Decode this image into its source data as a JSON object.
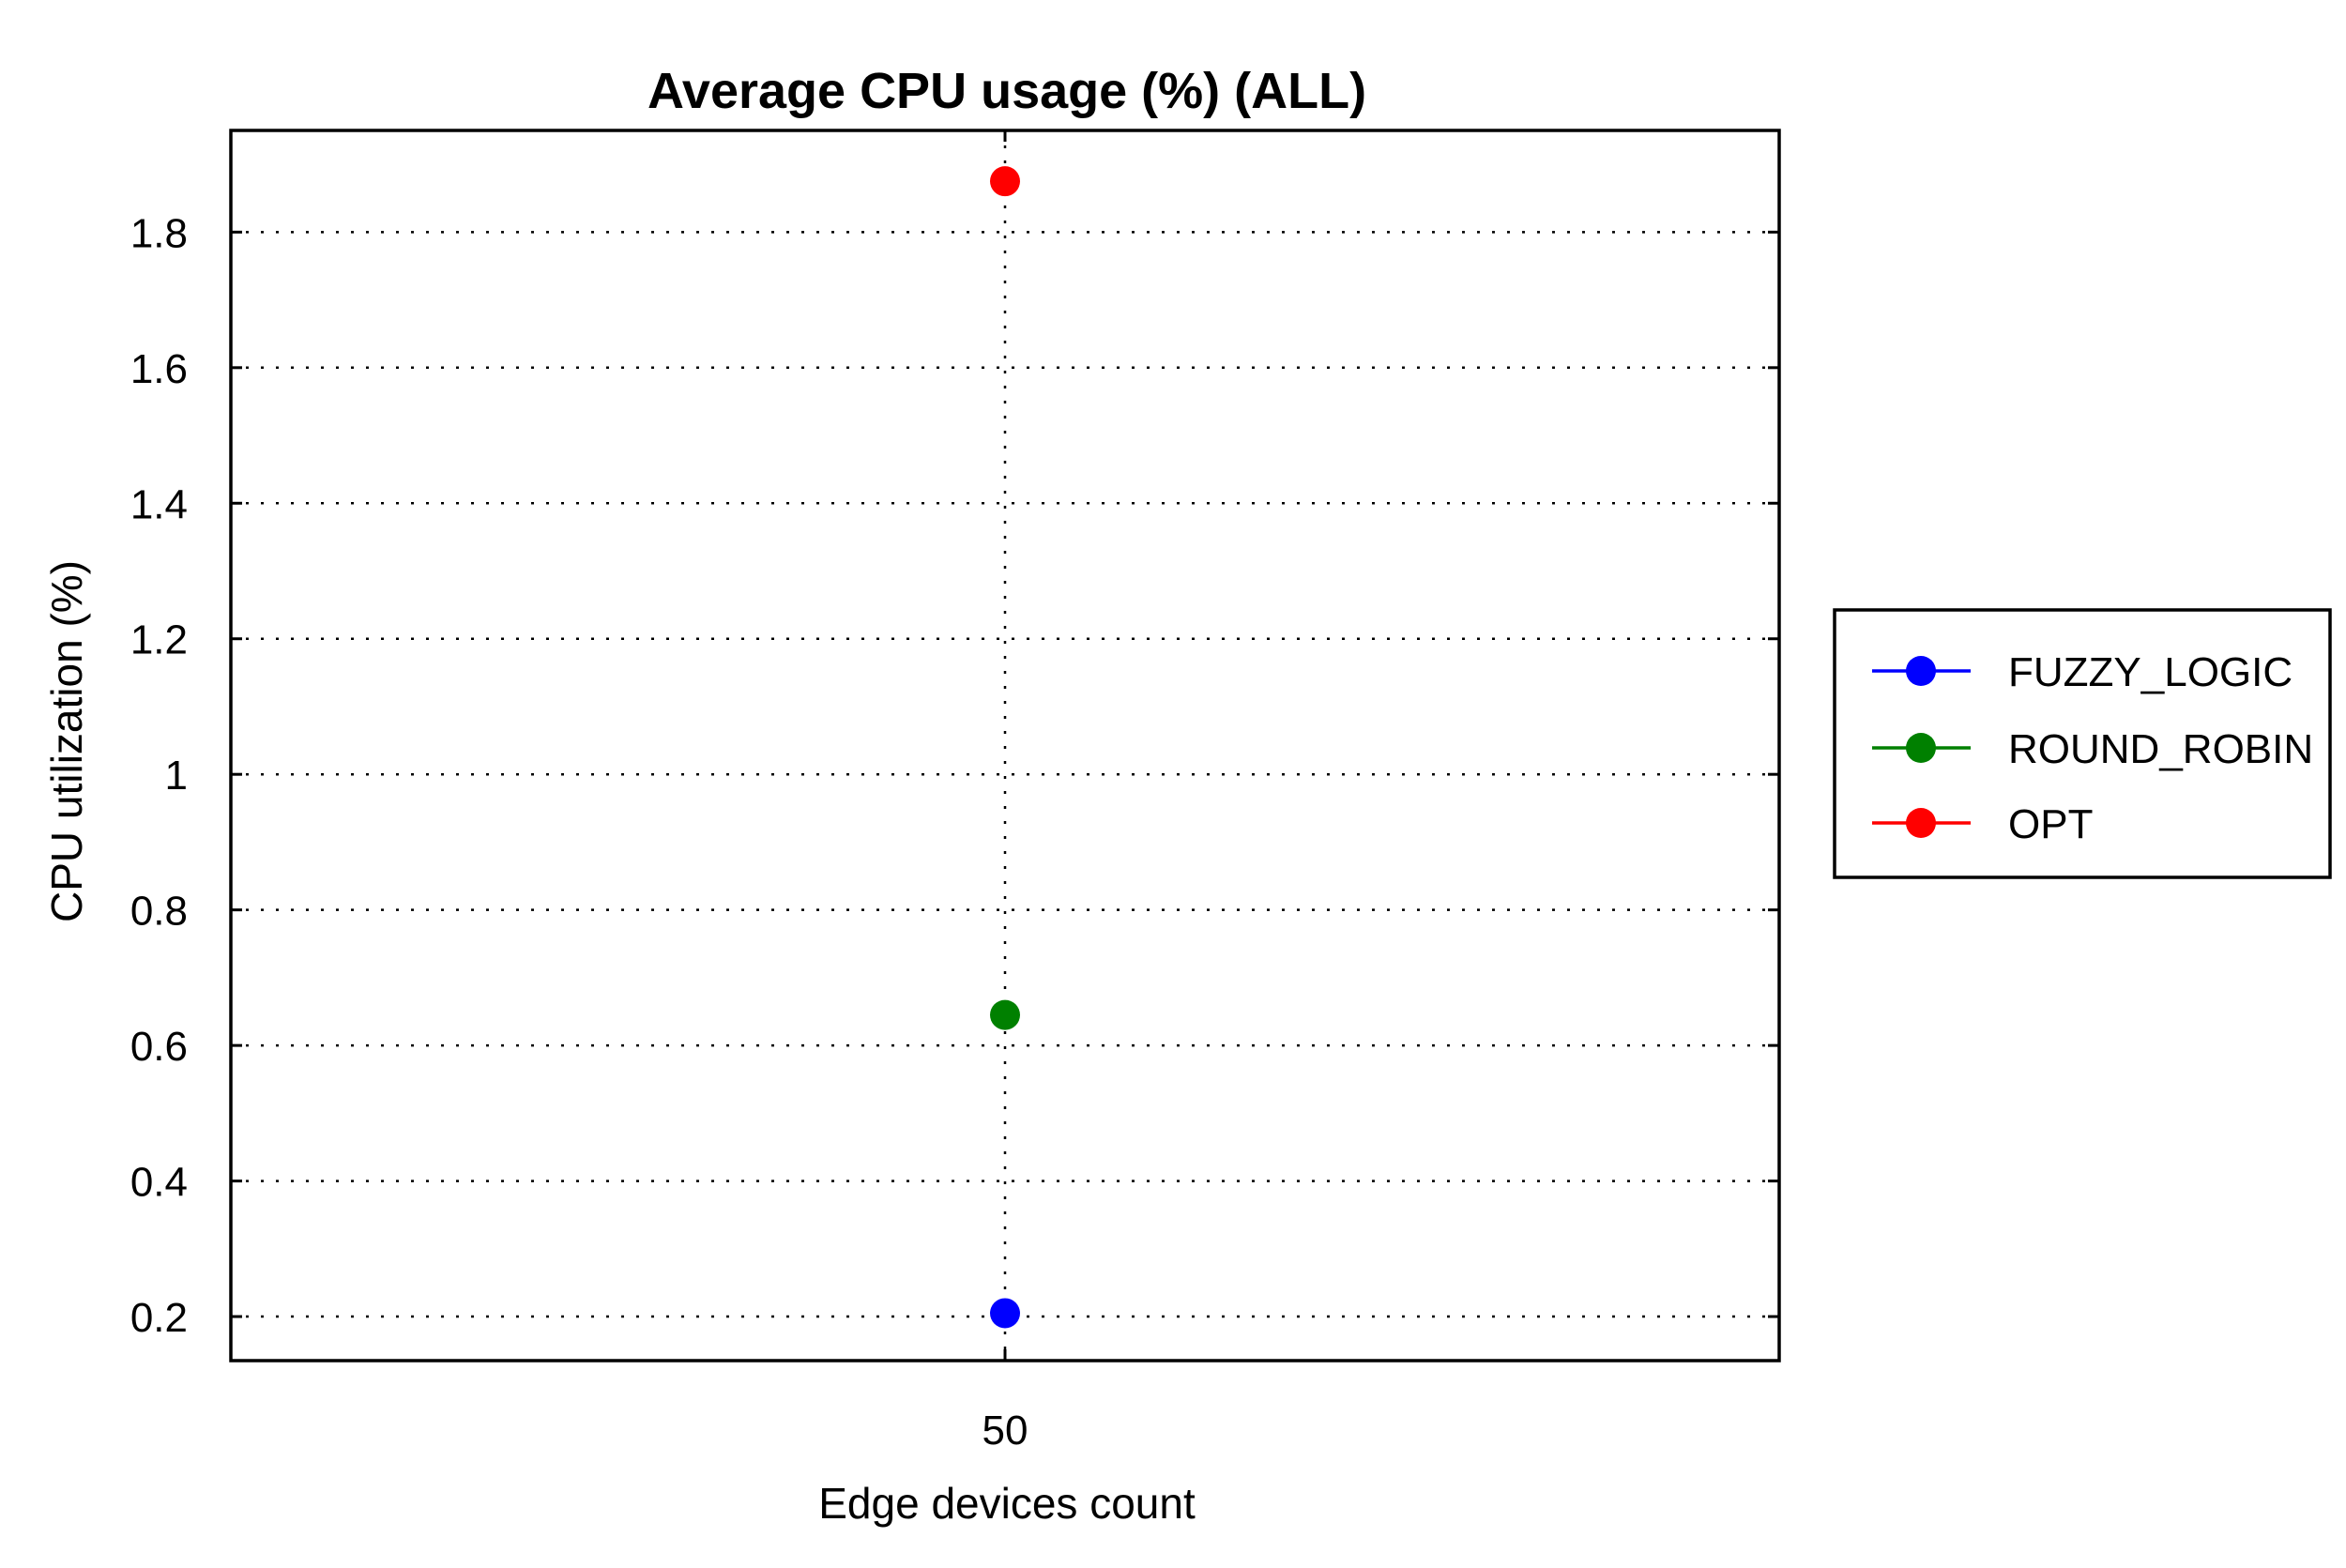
{
  "chart_data": {
    "type": "scatter",
    "title": "Average CPU usage (%) (ALL)",
    "xlabel": "Edge devices count",
    "ylabel": "CPU utilization (%)",
    "categories": [
      "50"
    ],
    "xlim": [
      0,
      2
    ],
    "ylim": [
      0.135,
      1.95
    ],
    "yticks": [
      0.2,
      0.4,
      0.6,
      0.8,
      1.0,
      1.2,
      1.4,
      1.6,
      1.8
    ],
    "ytick_labels": [
      "0.2",
      "0.4",
      "0.6",
      "0.8",
      "1",
      "1.2",
      "1.4",
      "1.6",
      "1.8"
    ],
    "grid": true,
    "legend_position": "outside-right",
    "series": [
      {
        "name": "FUZZY_LOGIC",
        "color": "#0000ff",
        "values": [
          0.205
        ]
      },
      {
        "name": " ROUND_ROBIN",
        "color": "#008000",
        "values": [
          0.645
        ]
      },
      {
        "name": "OPT",
        "color": "#ff0000",
        "values": [
          1.875
        ]
      }
    ]
  }
}
